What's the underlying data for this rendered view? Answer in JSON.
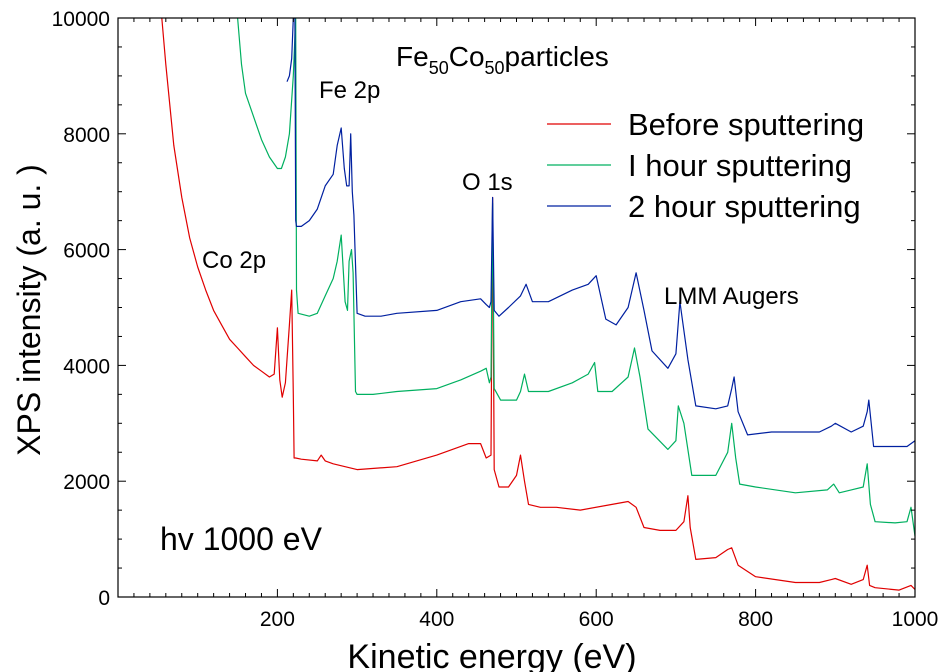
{
  "chart_data": {
    "type": "line",
    "title": "Fe50Co50particles",
    "title_parts": {
      "a": "Fe",
      "a_sub": "50",
      "b": "Co",
      "b_sub": "50",
      "c": "particles"
    },
    "xlabel": "Kinetic energy (eV)",
    "ylabel": "XPS intensity (a. u. )",
    "xlim": [
      0,
      1000
    ],
    "ylim": [
      0,
      10000
    ],
    "x_ticks": [
      200,
      400,
      600,
      800,
      1000
    ],
    "y_ticks": [
      0,
      2000,
      4000,
      6000,
      8000,
      10000
    ],
    "grid": false,
    "legend_position": "top-right",
    "annotations": [
      {
        "id": "fe2p",
        "text": "Fe 2p"
      },
      {
        "id": "o1s",
        "text": "O 1s"
      },
      {
        "id": "co2p",
        "text": "Co 2p"
      },
      {
        "id": "lmm",
        "text": "LMM Augers"
      },
      {
        "id": "hv",
        "text": "hv 1000 eV"
      }
    ],
    "series": [
      {
        "name": "Before sputtering",
        "color": "#e00000",
        "x": [
          55,
          60,
          70,
          80,
          90,
          100,
          110,
          120,
          130,
          140,
          150,
          160,
          170,
          180,
          190,
          196,
          200,
          203,
          206,
          210,
          212,
          215,
          218,
          220,
          221,
          223,
          230,
          250,
          255,
          260,
          270,
          300,
          350,
          400,
          440,
          455,
          462,
          468,
          470,
          472,
          478,
          490,
          500,
          505,
          510,
          515,
          530,
          550,
          580,
          620,
          640,
          650,
          660,
          680,
          700,
          710,
          715,
          718,
          725,
          750,
          765,
          770,
          778,
          800,
          850,
          880,
          895,
          900,
          920,
          935,
          940,
          943,
          950,
          980,
          995,
          1000
        ],
        "y": [
          10000,
          9200,
          7800,
          6900,
          6200,
          5700,
          5300,
          4950,
          4700,
          4450,
          4300,
          4150,
          4000,
          3900,
          3800,
          3850,
          4650,
          3750,
          3450,
          3700,
          4100,
          4700,
          5300,
          3500,
          2400,
          2400,
          2380,
          2350,
          2450,
          2350,
          2300,
          2200,
          2250,
          2450,
          2650,
          2650,
          2400,
          2450,
          6900,
          2200,
          1900,
          1900,
          2100,
          2450,
          2000,
          1600,
          1550,
          1550,
          1500,
          1600,
          1650,
          1550,
          1200,
          1150,
          1150,
          1300,
          1750,
          1200,
          650,
          680,
          820,
          850,
          550,
          350,
          250,
          250,
          300,
          320,
          220,
          300,
          550,
          200,
          160,
          120,
          200,
          130
        ]
      },
      {
        "name": "I hour sputtering",
        "color": "#00b060",
        "x": [
          150,
          155,
          160,
          170,
          180,
          190,
          200,
          205,
          210,
          215,
          220,
          223,
          224,
          226,
          240,
          250,
          260,
          270,
          275,
          280,
          285,
          288,
          290,
          293,
          295,
          298,
          300,
          320,
          350,
          400,
          430,
          455,
          462,
          466,
          468,
          470,
          472,
          480,
          500,
          505,
          510,
          515,
          540,
          570,
          590,
          598,
          602,
          620,
          640,
          648,
          655,
          665,
          690,
          700,
          703,
          710,
          720,
          750,
          765,
          770,
          775,
          780,
          800,
          850,
          890,
          898,
          905,
          920,
          935,
          940,
          944,
          950,
          975,
          990,
          995,
          1000
        ],
        "y": [
          10000,
          9200,
          8700,
          8300,
          7900,
          7600,
          7400,
          7400,
          7600,
          8000,
          9000,
          10000,
          5300,
          4900,
          4850,
          4900,
          5200,
          5500,
          5800,
          6250,
          5100,
          4950,
          5800,
          6000,
          5600,
          3550,
          3500,
          3500,
          3550,
          3600,
          3750,
          3900,
          3950,
          3700,
          3800,
          6800,
          3600,
          3400,
          3400,
          3550,
          3850,
          3550,
          3550,
          3700,
          3850,
          4050,
          3550,
          3550,
          3800,
          4300,
          3800,
          2900,
          2550,
          2700,
          3300,
          3000,
          2100,
          2100,
          2500,
          3000,
          2400,
          1950,
          1900,
          1800,
          1850,
          1950,
          1800,
          1850,
          1900,
          2300,
          1600,
          1300,
          1280,
          1300,
          1550,
          1050
        ]
      },
      {
        "name": "2 hour sputtering",
        "color": "#0020a0",
        "x": [
          212,
          215,
          218,
          220,
          222,
          223,
          224,
          230,
          240,
          250,
          260,
          270,
          275,
          280,
          284,
          287,
          290,
          292,
          294,
          296,
          300,
          310,
          330,
          350,
          400,
          430,
          455,
          462,
          466,
          468,
          470,
          472,
          478,
          490,
          505,
          512,
          520,
          540,
          570,
          590,
          600,
          612,
          625,
          640,
          650,
          660,
          670,
          690,
          700,
          705,
          715,
          725,
          750,
          765,
          770,
          773,
          778,
          790,
          820,
          850,
          880,
          895,
          900,
          920,
          935,
          940,
          942,
          948,
          960,
          990,
          1000,
          1002
        ],
        "y": [
          8900,
          9000,
          9300,
          10000,
          10000,
          6500,
          6400,
          6400,
          6500,
          6700,
          7100,
          7300,
          7800,
          8100,
          7400,
          7100,
          7100,
          8000,
          7000,
          6600,
          4900,
          4850,
          4850,
          4900,
          4950,
          5100,
          5150,
          5050,
          5000,
          5100,
          6900,
          4950,
          4850,
          5000,
          5200,
          5400,
          5100,
          5100,
          5300,
          5400,
          5550,
          4800,
          4700,
          5000,
          5600,
          4950,
          4250,
          3950,
          4200,
          5100,
          4100,
          3300,
          3250,
          3300,
          3600,
          3800,
          3200,
          2800,
          2850,
          2850,
          2850,
          2950,
          3000,
          2850,
          2950,
          3200,
          3400,
          2600,
          2600,
          2600,
          2700,
          2500
        ]
      }
    ]
  }
}
